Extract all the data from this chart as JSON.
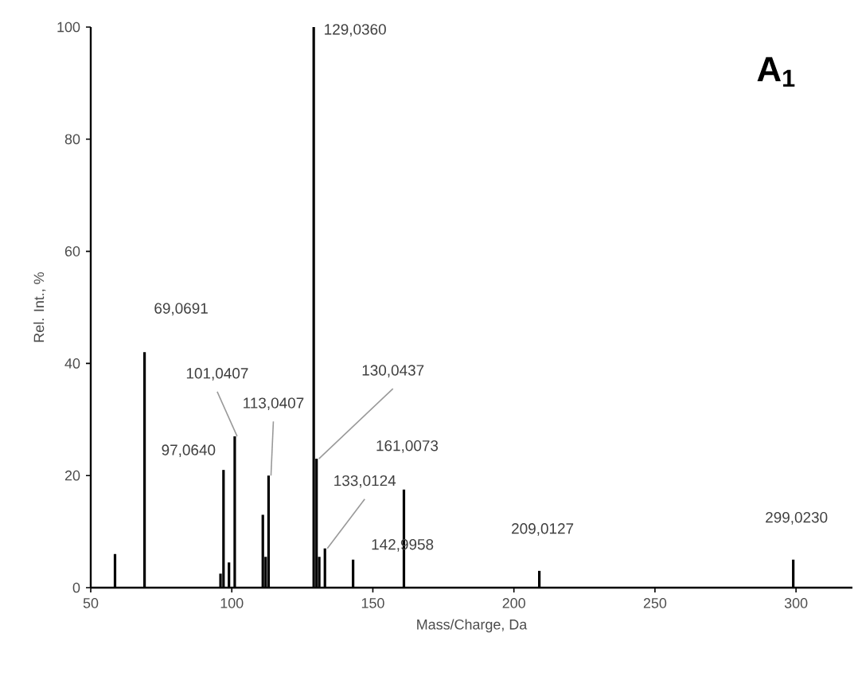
{
  "chart_data": {
    "type": "bar",
    "title": "**A$_{1}$**",
    "xlabel": "Mass/Charge, Da",
    "ylabel": "Rel. Int., %",
    "x": [
      58.6,
      69.07,
      96.0,
      97.06,
      99.0,
      101.04,
      111.0,
      112.0,
      113.04,
      129.04,
      130.04,
      131.0,
      133.01,
      142.99,
      161.01,
      209.01,
      299.02
    ],
    "values": [
      6,
      42,
      2.5,
      21,
      4.5,
      27,
      13,
      5.5,
      20,
      100,
      23,
      5.5,
      7,
      5,
      17.5,
      3,
      5
    ],
    "color": "#000000",
    "xlim": [
      50,
      320
    ],
    "ylim": [
      0,
      100
    ],
    "xticks": [
      50,
      100,
      150,
      200,
      250,
      300
    ],
    "yticks": [
      0,
      20,
      40,
      60,
      80,
      100
    ],
    "grid": false,
    "annotations": [
      {
        "text": "69,0691",
        "x": 69.07,
        "y": 42
      },
      {
        "text": "97,0640",
        "x": 97.06,
        "y": 21
      },
      {
        "text": "101,0407",
        "x": 101.04,
        "y": 27
      },
      {
        "text": "113,0407",
        "x": 113.04,
        "y": 20
      },
      {
        "text": "129,0360",
        "x": 129.04,
        "y": 100
      },
      {
        "text": "130,0437",
        "x": 130.04,
        "y": 23
      },
      {
        "text": "133,0124",
        "x": 133.01,
        "y": 7
      },
      {
        "text": "142,9958",
        "x": 142.99,
        "y": 5
      },
      {
        "text": "161,0073",
        "x": 161.01,
        "y": 17.5
      },
      {
        "text": "209,0127",
        "x": 209.01,
        "y": 3
      },
      {
        "text": "299,0230",
        "x": 299.02,
        "y": 5
      }
    ]
  }
}
